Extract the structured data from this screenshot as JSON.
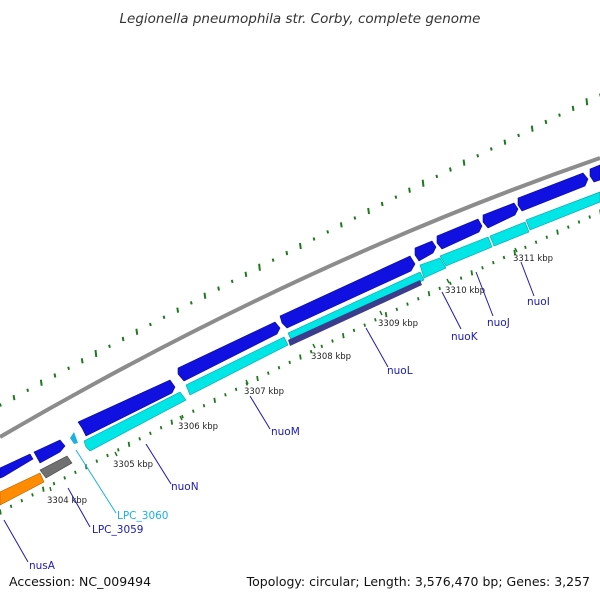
{
  "title": "Legionella pneumophila str. Corby, complete genome",
  "footer": {
    "accession": "Accession: NC_009494",
    "summary": "Topology: circular; Length: 3,576,470 bp; Genes: 3,257"
  },
  "colors": {
    "forward_cds": "#1010e0",
    "reverse_cds": "#00e6e6",
    "rna": "#ff8c00",
    "pseudo_gray": "#707070",
    "dark_cds": "#3c3c8c",
    "backbone": "#8c8c8c",
    "gc_ticks": "#1c7a1c",
    "label_blue": "#1a1ab8",
    "label_cyan": "#1ab0e6"
  },
  "scale_ticks": [
    {
      "label": "3304 kbp"
    },
    {
      "label": "3305 kbp"
    },
    {
      "label": "3306 kbp"
    },
    {
      "label": "3307 kbp"
    },
    {
      "label": "3308 kbp"
    },
    {
      "label": "3309 kbp"
    },
    {
      "label": "3310 kbp"
    },
    {
      "label": "3311 kbp"
    }
  ],
  "gene_labels": [
    {
      "name": "nusA",
      "color": "#1a1ab8"
    },
    {
      "name": "LPC_3059",
      "color": "#1a1ab8"
    },
    {
      "name": "LPC_3060",
      "color": "#1ab0e6"
    },
    {
      "name": "nuoN",
      "color": "#1a1ab8"
    },
    {
      "name": "nuoM",
      "color": "#1a1ab8"
    },
    {
      "name": "nuoL",
      "color": "#1a1ab8"
    },
    {
      "name": "nuoK",
      "color": "#1a1ab8"
    },
    {
      "name": "nuoJ",
      "color": "#1a1ab8"
    },
    {
      "name": "nuoI",
      "color": "#1a1ab8"
    }
  ]
}
